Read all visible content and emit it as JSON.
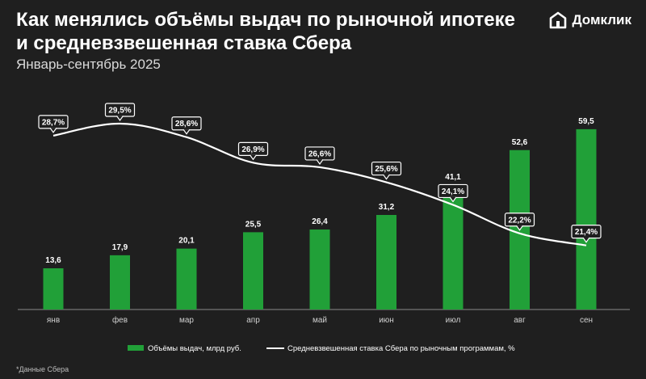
{
  "header": {
    "title": "Как менялись объёмы выдач по рыночной ипотеке и средневзвешенная ставка Сбера",
    "subtitle": "Январь-сентябрь 2025"
  },
  "logo": {
    "text": "Домклик",
    "icon": "house-logo-icon"
  },
  "footnote": "*Данные Сбера",
  "colors": {
    "background": "#1f1f1f",
    "bar": "#21a038",
    "line": "#ffffff",
    "axis": "#8a8a8a"
  },
  "chart_data": {
    "type": "bar",
    "categories": [
      "янв",
      "фев",
      "мар",
      "апр",
      "май",
      "июн",
      "июл",
      "авг",
      "сен"
    ],
    "series": [
      {
        "name": "Объёмы выдач, млрд руб.",
        "type": "bar",
        "values": [
          13.6,
          17.9,
          20.1,
          25.5,
          26.4,
          31.2,
          41.1,
          52.6,
          59.5
        ],
        "labels": [
          "13,6",
          "17,9",
          "20,1",
          "25,5",
          "26,4",
          "31,2",
          "41,1",
          "52,6",
          "59,5"
        ]
      },
      {
        "name": "Средневзвешенная ставка Сбера по рыночным программам, %",
        "type": "line",
        "values": [
          28.7,
          29.5,
          28.6,
          26.9,
          26.6,
          25.6,
          24.1,
          22.2,
          21.4
        ],
        "labels": [
          "28,7%",
          "29,5%",
          "28,6%",
          "26,9%",
          "26,6%",
          "25,6%",
          "24,1%",
          "22,2%",
          "21,4%"
        ]
      }
    ],
    "legend": "bottom-center"
  }
}
